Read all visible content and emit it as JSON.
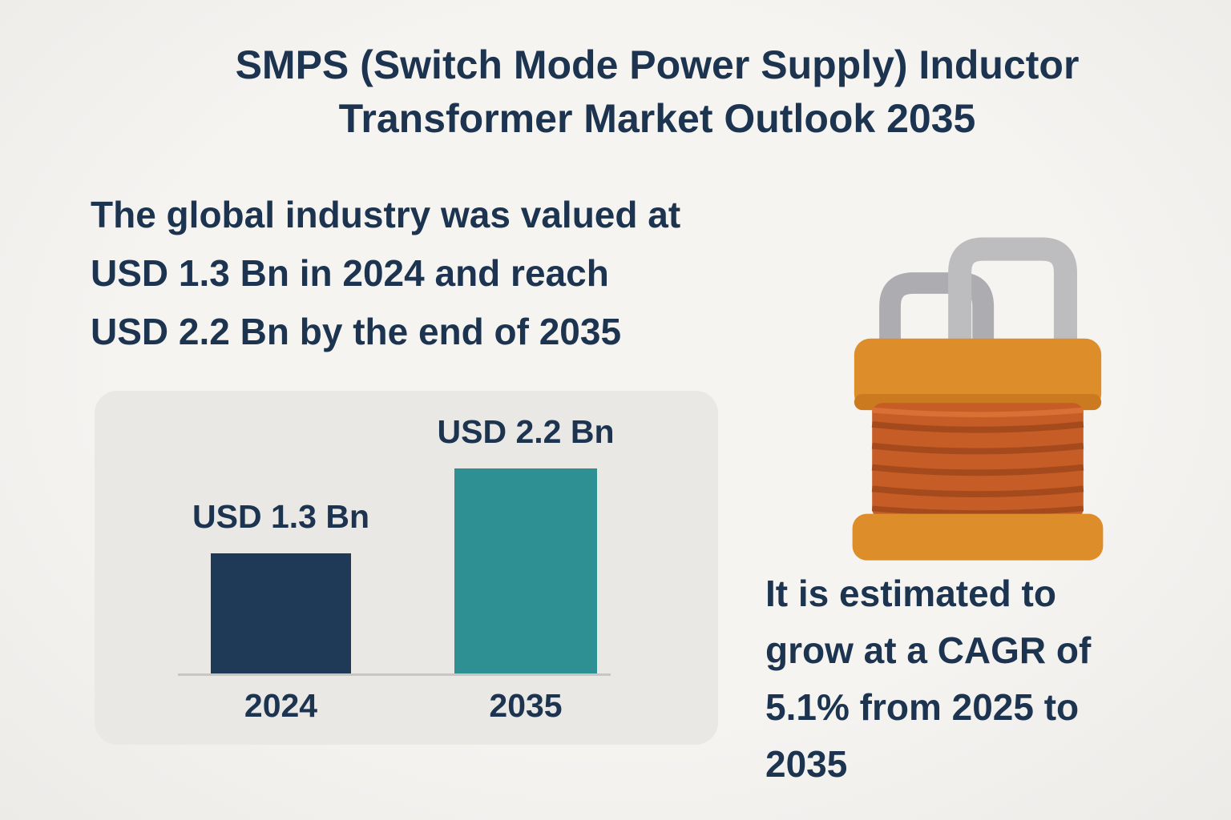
{
  "header": {
    "title_lines": [
      "SMPS (Switch Mode Power Supply) Inductor",
      "Transformer Market Outlook 2035"
    ]
  },
  "intro": {
    "lines": [
      "The global industry was valued at",
      "USD 1.3 Bn  in 2024 and reach",
      "USD 2.2 Bn by the end of 2035"
    ]
  },
  "cagr": {
    "lines": [
      "It is estimated to",
      "grow at a CAGR of",
      "5.1% from 2025 to",
      "2035"
    ]
  },
  "chart_data": {
    "type": "bar",
    "title": "",
    "categories": [
      "2024",
      "2035"
    ],
    "values": [
      1.3,
      2.2
    ],
    "unit": "USD Bn",
    "value_labels": [
      "USD 1.3 Bn",
      "USD 2.2 Bn"
    ],
    "bar_colors": [
      "#1e3a56",
      "#2f9094"
    ],
    "ylim": [
      0,
      2.2
    ],
    "grid": false,
    "legend": false,
    "xlabel": "",
    "ylabel": ""
  },
  "illustration": {
    "name": "inductor-transformer-icon"
  },
  "colors": {
    "background": "#f4f2ef",
    "text_navy": "#1c3450",
    "panel_gray": "#e9e8e5",
    "axis_gray": "#c7c6c3",
    "bar_2024": "#1e3a56",
    "bar_2035": "#2f9094",
    "coil_caps_orange": "#dd8e2a",
    "coil_body_orange": "#c65c26",
    "winding_dark": "#a54a1c",
    "wire_gray": "#b5b5b8"
  }
}
